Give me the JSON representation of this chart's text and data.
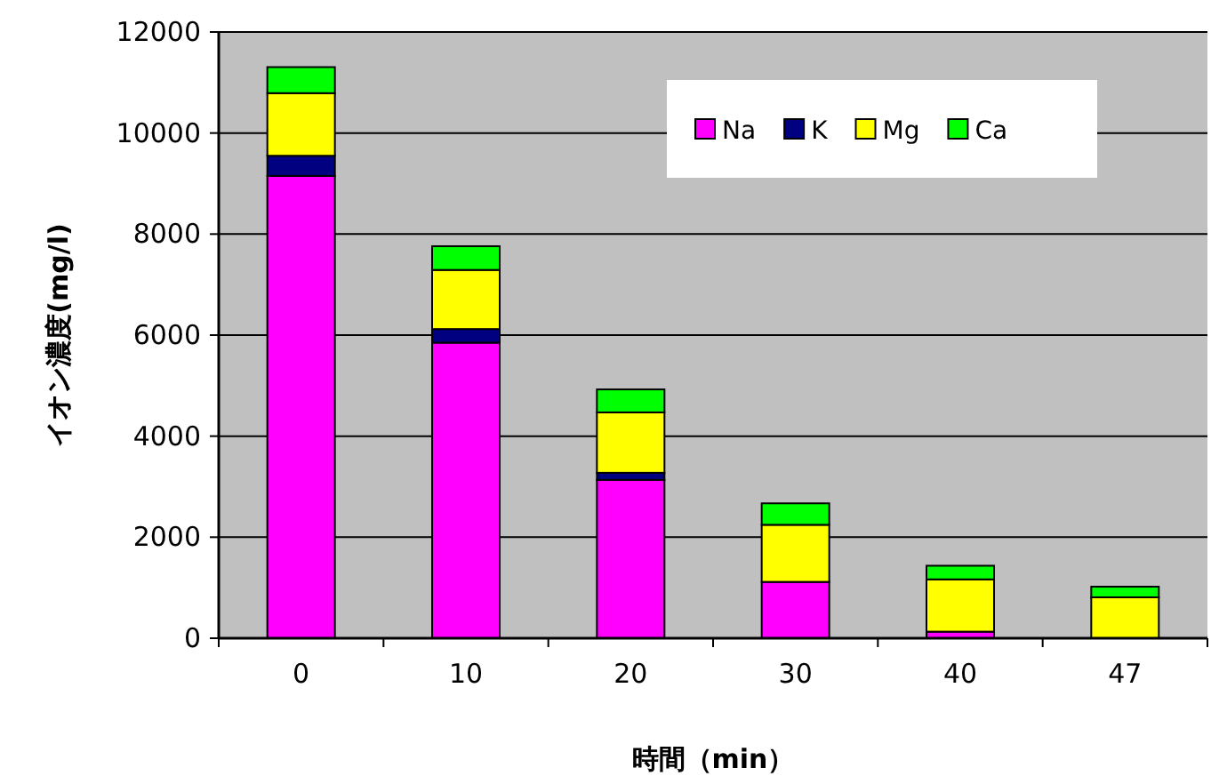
{
  "chart_data": {
    "type": "bar",
    "stacked": true,
    "xlabel": "時間（min）",
    "ylabel": "イオン濃度(mg/l)",
    "categories": [
      "0",
      "10",
      "20",
      "30",
      "40",
      "47"
    ],
    "series": [
      {
        "name": "Na",
        "color": "#ff00ff",
        "values": [
          9150,
          5850,
          3135,
          1115,
          130,
          0
        ]
      },
      {
        "name": "K",
        "color": "#000080",
        "values": [
          400,
          270,
          140,
          0,
          0,
          0
        ]
      },
      {
        "name": "Mg",
        "color": "#ffff00",
        "values": [
          1240,
          1170,
          1195,
          1130,
          1035,
          810
        ]
      },
      {
        "name": "Ca",
        "color": "#00ff00",
        "values": [
          515,
          470,
          455,
          425,
          270,
          210
        ]
      }
    ],
    "ylim": [
      0,
      12000
    ],
    "yticks": [
      0,
      2000,
      4000,
      6000,
      8000,
      10000,
      12000
    ],
    "grid": "y",
    "legend": "top right"
  }
}
